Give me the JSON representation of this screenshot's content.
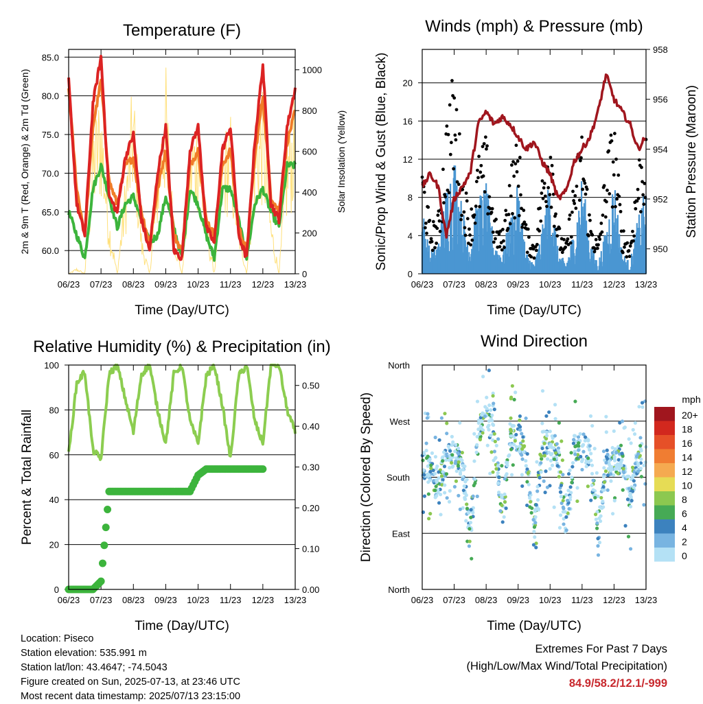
{
  "time_tick_labels": [
    "06/23",
    "07/23",
    "08/23",
    "09/23",
    "10/23",
    "11/23",
    "12/23",
    "13/23"
  ],
  "time_xlabel": "Time (Day/UTC)",
  "colors": {
    "temp_2m": "#dc2323",
    "temp_9m": "#f07d28",
    "dewpoint": "#3cb43c",
    "insolation": "#ffe07a",
    "wind": "#4a96d2",
    "gust": "#000000",
    "pressure": "#a0161e",
    "rh": "#8ccd50",
    "precip": "#3cb43c"
  },
  "speed_legend": {
    "title": "mph",
    "labels": [
      "20+",
      "18",
      "16",
      "14",
      "12",
      "10",
      "8",
      "6",
      "4",
      "2",
      "0"
    ],
    "colors": [
      "#a0161e",
      "#d2281e",
      "#e65028",
      "#f07d32",
      "#f5aa50",
      "#e6dc55",
      "#8cc850",
      "#46aa55",
      "#3c82be",
      "#78b4e1",
      "#b4e1f5"
    ]
  },
  "info": {
    "location": "Location: Piseco",
    "elevation": "Station elevation: 535.991 m",
    "latlon": "Station lat/lon: 43.4647; -74.5043",
    "created": "Figure created on Sun, 2025-07-13, at 23:46 UTC",
    "recent": "Most recent data timestamp: 2025/07/13 23:15:00"
  },
  "extremes": {
    "title": "Extremes For Past 7 Days",
    "subtitle": "(High/Low/Max Wind/Total Precipitation)",
    "values": "84.9/58.2/12.1/-999"
  },
  "chart_data": [
    {
      "type": "line",
      "title": "Temperature (F)",
      "xlabel": "Time (Day/UTC)",
      "ylabel": "2m & 9m T (Red, Orange) & 2m Td (Green)",
      "y2label": "Solar Insolation (Yellow)",
      "ylim": [
        57,
        86
      ],
      "y_ticks": [
        "60.0",
        "65.0",
        "70.0",
        "75.0",
        "80.0",
        "85.0"
      ],
      "y2lim": [
        0,
        1100
      ],
      "y2_ticks": [
        "0",
        "200",
        "400",
        "600",
        "800",
        "1000"
      ],
      "x": [
        6,
        6.25,
        6.5,
        6.75,
        7,
        7.25,
        7.5,
        7.75,
        8,
        8.25,
        8.5,
        8.75,
        9,
        9.25,
        9.5,
        9.75,
        10,
        10.25,
        10.5,
        10.75,
        11,
        11.25,
        11.5,
        11.75,
        12,
        12.25,
        12.5,
        12.75,
        13
      ],
      "series": [
        {
          "values": [
            82,
            66,
            62,
            79,
            85,
            67,
            65,
            72,
            75,
            64,
            60,
            70,
            76,
            60,
            59,
            73,
            76,
            63,
            61,
            73,
            76,
            62,
            59,
            74,
            84,
            66,
            64,
            76,
            81
          ]
        },
        {
          "values": [
            81,
            68,
            62,
            76,
            82,
            69,
            66,
            71,
            72,
            65,
            61,
            68,
            73,
            62,
            60,
            71,
            73,
            64,
            62,
            71,
            73,
            63,
            60,
            72,
            80,
            67,
            65,
            74,
            78
          ]
        },
        {
          "values": [
            65,
            62,
            59,
            68,
            71,
            67,
            63,
            66,
            67,
            64,
            61,
            62,
            67,
            63,
            59,
            68,
            66,
            62,
            59,
            68,
            68,
            64,
            59,
            66,
            68,
            65,
            63,
            71,
            71
          ]
        },
        {
          "values": [
            0,
            30,
            0,
            750,
            950,
            300,
            0,
            500,
            1000,
            200,
            0,
            600,
            1050,
            250,
            0,
            700,
            850,
            300,
            0,
            700,
            800,
            300,
            0,
            800,
            900,
            300,
            0,
            700,
            900
          ]
        }
      ]
    },
    {
      "type": "scatter",
      "title": "Winds (mph) & Pressure (mb)",
      "xlabel": "Time (Day/UTC)",
      "ylabel": "Sonic/Prop Wind & Gust (Blue, Black)",
      "y2label": "Station Pressure (Maroon)",
      "ylim": [
        0,
        23.5
      ],
      "y_ticks": [
        "0",
        "4",
        "8",
        "12",
        "16",
        "20"
      ],
      "y2lim": [
        949,
        958
      ],
      "y2_ticks": [
        "950",
        "952",
        "954",
        "956",
        "958"
      ],
      "x": [
        6,
        6.25,
        6.5,
        6.75,
        7,
        7.25,
        7.5,
        7.75,
        8,
        8.25,
        8.5,
        8.75,
        9,
        9.25,
        9.5,
        9.75,
        10,
        10.25,
        10.5,
        10.75,
        11,
        11.25,
        11.5,
        11.75,
        12,
        12.25,
        12.5,
        12.75,
        13
      ],
      "series": [
        {
          "values": [
            6,
            2,
            3,
            8,
            11,
            6,
            3,
            7,
            8,
            3,
            2,
            5,
            8,
            2,
            1,
            4,
            9,
            2,
            1,
            4,
            9,
            3,
            1,
            4,
            9,
            2,
            1,
            5,
            8
          ]
        },
        {
          "values": [
            12,
            5,
            6,
            16,
            21,
            11,
            6,
            12,
            14,
            6,
            4,
            11,
            14,
            5,
            3,
            10,
            17,
            5,
            3,
            10,
            15,
            6,
            3,
            12,
            16,
            5,
            3,
            12,
            15
          ]
        },
        {
          "values": [
            952.5,
            953,
            952.5,
            950.5,
            952,
            952.5,
            953,
            955,
            955.5,
            955,
            955.3,
            955,
            954.5,
            954,
            954.3,
            953.5,
            953,
            952,
            952.3,
            953.5,
            954,
            954.5,
            955.5,
            957,
            956,
            955.5,
            955,
            954,
            954.5
          ]
        }
      ]
    },
    {
      "type": "line",
      "title": "Relative Humidity (%) & Precipitation (in)",
      "xlabel": "Time (Day/UTC)",
      "ylabel": "Percent & Total Rainfall",
      "ylim": [
        0,
        100
      ],
      "y_ticks": [
        "0",
        "20",
        "40",
        "60",
        "80",
        "100"
      ],
      "y2lim": [
        0,
        0.55
      ],
      "y2_ticks": [
        "0.00",
        "0.10",
        "0.20",
        "0.30",
        "0.40",
        "0.50"
      ],
      "x": [
        6,
        6.25,
        6.5,
        6.75,
        7,
        7.25,
        7.5,
        7.75,
        8,
        8.25,
        8.5,
        8.75,
        9,
        9.25,
        9.5,
        9.75,
        10,
        10.25,
        10.5,
        10.75,
        11,
        11.25,
        11.5,
        11.75,
        12,
        12.25,
        12.5,
        12.75,
        13
      ],
      "series": [
        {
          "values": [
            60,
            92,
            97,
            62,
            58,
            96,
            100,
            85,
            70,
            96,
            100,
            80,
            65,
            96,
            100,
            75,
            65,
            95,
            100,
            82,
            58,
            95,
            100,
            75,
            65,
            100,
            100,
            80,
            70
          ]
        },
        {
          "values": [
            0,
            0,
            0,
            0,
            0.02,
            0.24,
            0.24,
            0.24,
            0.24,
            0.24,
            0.24,
            0.24,
            0.24,
            0.24,
            0.24,
            0.24,
            0.28,
            0.295,
            0.295,
            0.295,
            0.295,
            0.295,
            0.295,
            0.295,
            0.295,
            null,
            null,
            null,
            null
          ]
        }
      ]
    },
    {
      "type": "scatter",
      "title": "Wind Direction",
      "xlabel": "Time (Day/UTC)",
      "ylabel": "Direction (Colored By Speed)",
      "y_ticks": [
        "North",
        "East",
        "South",
        "West",
        "North"
      ],
      "ylim": [
        0,
        360
      ],
      "x": [
        6,
        6.25,
        6.5,
        6.75,
        7,
        7.25,
        7.5,
        7.75,
        8,
        8.25,
        8.5,
        8.75,
        9,
        9.25,
        9.5,
        9.75,
        10,
        10.25,
        10.5,
        10.75,
        11,
        11.25,
        11.5,
        11.75,
        12,
        12.25,
        12.5,
        12.75,
        13
      ],
      "series": [
        {
          "values": [
            200,
            190,
            150,
            230,
            215,
            200,
            90,
            245,
            290,
            250,
            120,
            240,
            245,
            220,
            90,
            235,
            230,
            210,
            100,
            225,
            230,
            215,
            90,
            205,
            205,
            210,
            150,
            210,
            215
          ]
        }
      ]
    }
  ]
}
